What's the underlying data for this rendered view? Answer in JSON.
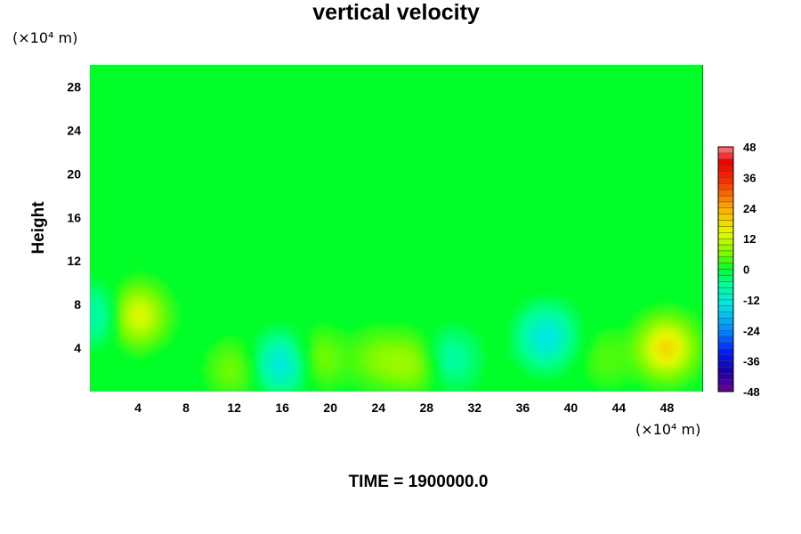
{
  "chart_data": {
    "type": "heatmap",
    "title": "vertical velocity",
    "ylabel": "Height",
    "xlabel": "",
    "x_unit": "(×10⁴ m)",
    "y_unit": "(×10⁴ m)",
    "footer": "TIME = 1900000.0",
    "xlim": [
      0,
      51
    ],
    "ylim": [
      0,
      30
    ],
    "x_ticks": [
      4,
      8,
      12,
      16,
      20,
      24,
      28,
      32,
      36,
      40,
      44,
      48
    ],
    "y_ticks": [
      4,
      8,
      12,
      16,
      20,
      24,
      28
    ],
    "colorbar": {
      "range": [
        -48,
        48
      ],
      "ticks": [
        48,
        36,
        24,
        12,
        0,
        -12,
        -24,
        -36,
        -48
      ]
    },
    "background_value": 0,
    "features": [
      {
        "x": 4,
        "y": 7,
        "value": 14
      },
      {
        "x": 0.5,
        "y": 7,
        "value": -9
      },
      {
        "x": 12,
        "y": 2,
        "value": 6
      },
      {
        "x": 16,
        "y": 2.5,
        "value": -14
      },
      {
        "x": 19,
        "y": 3,
        "value": 7
      },
      {
        "x": 24,
        "y": 3,
        "value": 6
      },
      {
        "x": 27,
        "y": 2.5,
        "value": 8
      },
      {
        "x": 30,
        "y": 3,
        "value": -8
      },
      {
        "x": 38,
        "y": 5,
        "value": -14
      },
      {
        "x": 43,
        "y": 3,
        "value": 4
      },
      {
        "x": 48,
        "y": 4,
        "value": 18
      }
    ]
  }
}
